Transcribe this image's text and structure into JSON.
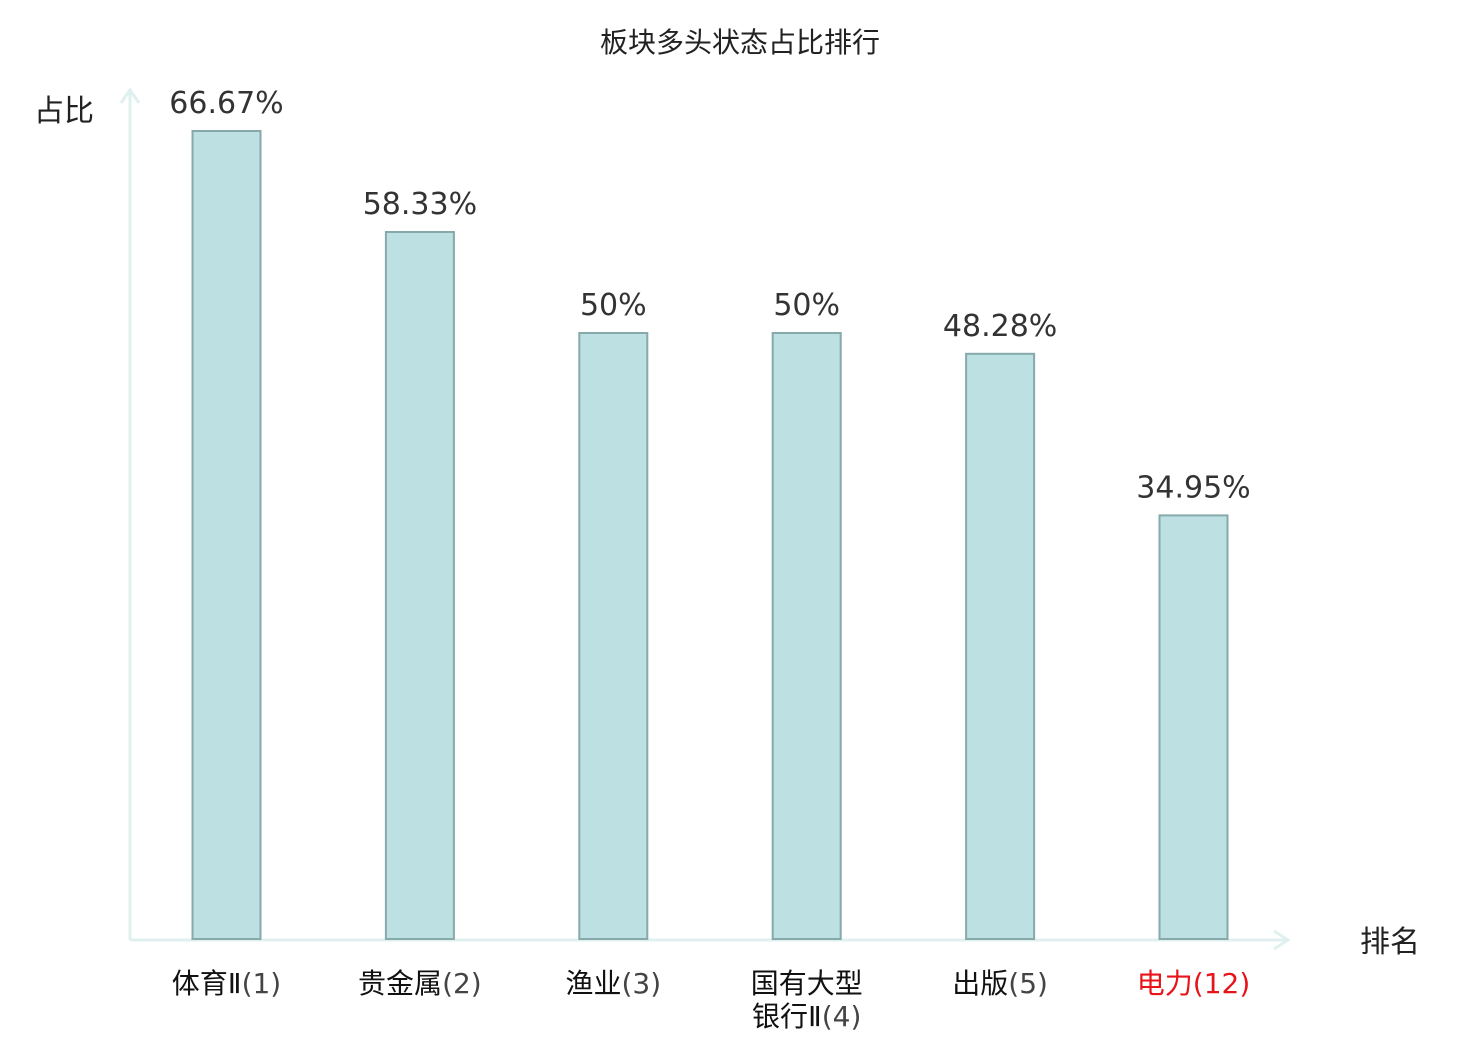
{
  "chart_data": {
    "type": "bar",
    "title": "板块多头状态占比排行",
    "ylabel": "占比",
    "xlabel": "排名",
    "ylim": [
      0,
      70
    ],
    "grid": false,
    "categories": [
      {
        "lines": [
          "体育Ⅱ"
        ],
        "rank": "(1)",
        "highlight": false
      },
      {
        "lines": [
          "贵金属"
        ],
        "rank": "(2)",
        "highlight": false
      },
      {
        "lines": [
          "渔业"
        ],
        "rank": "(3)",
        "highlight": false
      },
      {
        "lines": [
          "国有大型",
          "银行Ⅱ"
        ],
        "rank": "(4)",
        "highlight": false
      },
      {
        "lines": [
          "出版"
        ],
        "rank": "(5)",
        "highlight": false
      },
      {
        "lines": [
          "电力"
        ],
        "rank": "(12)",
        "highlight": true
      }
    ],
    "values": [
      66.67,
      58.33,
      50,
      50,
      48.28,
      34.95
    ],
    "value_labels": [
      "66.67%",
      "58.33%",
      "50%",
      "50%",
      "48.28%",
      "34.95%"
    ],
    "colors": {
      "bar_fill": "#bde0e2",
      "bar_stroke": "#86a9ab",
      "axis": "#dff0ee",
      "highlight": "#e8141a",
      "label": "#333333"
    }
  }
}
